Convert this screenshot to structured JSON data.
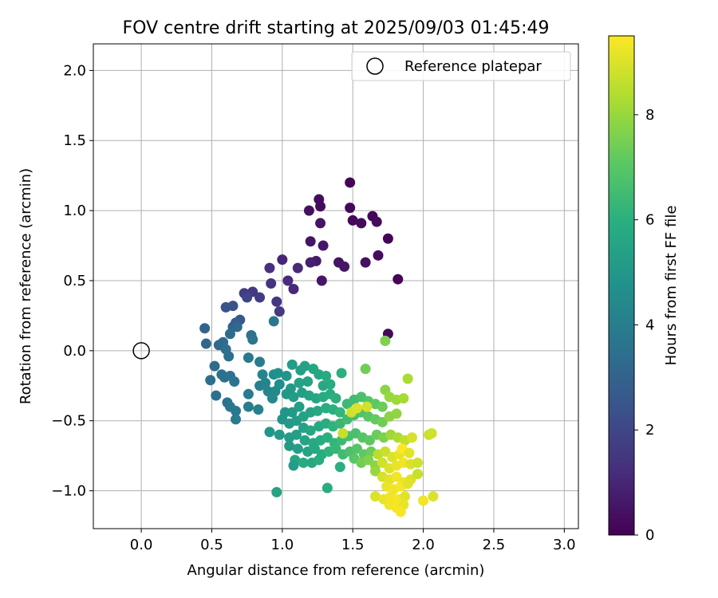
{
  "chart_data": {
    "type": "scatter",
    "title": "FOV centre drift starting at 2025/09/03 01:45:49",
    "xlabel": "Angular distance from reference (arcmin)",
    "ylabel": "Rotation from reference (arcmin)",
    "xlim": [
      -0.34,
      3.1
    ],
    "ylim": [
      -1.27,
      2.19
    ],
    "xticks": [
      0.0,
      0.5,
      1.0,
      1.5,
      2.0,
      2.5,
      3.0
    ],
    "xtick_labels": [
      "0.0",
      "0.5",
      "1.0",
      "1.5",
      "2.0",
      "2.5",
      "3.0"
    ],
    "yticks": [
      -1.0,
      -0.5,
      0.0,
      0.5,
      1.0,
      1.5,
      2.0
    ],
    "ytick_labels": [
      "−1.0",
      "−0.5",
      "0.0",
      "0.5",
      "1.0",
      "1.5",
      "2.0"
    ],
    "grid": true,
    "legend": {
      "position": "top-right",
      "entries": [
        {
          "label": "Reference platepar",
          "marker": "open-circle"
        }
      ]
    },
    "reference_point": {
      "x": 0.0,
      "y": 0.0
    },
    "colorbar": {
      "label": "Hours from first FF file",
      "colormap": "viridis",
      "range": [
        0,
        9.5
      ],
      "ticks": [
        0,
        2,
        4,
        6,
        8
      ],
      "tick_labels": [
        "0",
        "2",
        "4",
        "6",
        "8"
      ]
    },
    "points": [
      {
        "x": 1.48,
        "y": 1.2,
        "t": 0.1
      },
      {
        "x": 1.26,
        "y": 1.08,
        "t": 0.3
      },
      {
        "x": 1.27,
        "y": 1.03,
        "t": 0.3
      },
      {
        "x": 1.48,
        "y": 1.02,
        "t": 0.2
      },
      {
        "x": 1.19,
        "y": 1.0,
        "t": 0.4
      },
      {
        "x": 1.5,
        "y": 0.93,
        "t": 0.2
      },
      {
        "x": 1.64,
        "y": 0.96,
        "t": 0.2
      },
      {
        "x": 1.56,
        "y": 0.91,
        "t": 0.3
      },
      {
        "x": 1.67,
        "y": 0.92,
        "t": 0.3
      },
      {
        "x": 1.27,
        "y": 0.91,
        "t": 0.5
      },
      {
        "x": 1.75,
        "y": 0.8,
        "t": 0.1
      },
      {
        "x": 1.2,
        "y": 0.78,
        "t": 0.5
      },
      {
        "x": 1.29,
        "y": 0.75,
        "t": 0.6
      },
      {
        "x": 1.68,
        "y": 0.68,
        "t": 0.3
      },
      {
        "x": 1.59,
        "y": 0.63,
        "t": 0.4
      },
      {
        "x": 1.24,
        "y": 0.64,
        "t": 0.7
      },
      {
        "x": 1.2,
        "y": 0.63,
        "t": 0.8
      },
      {
        "x": 1.4,
        "y": 0.63,
        "t": 0.5
      },
      {
        "x": 1.44,
        "y": 0.6,
        "t": 0.6
      },
      {
        "x": 1.0,
        "y": 0.65,
        "t": 1.0
      },
      {
        "x": 1.82,
        "y": 0.51,
        "t": 0.1
      },
      {
        "x": 1.28,
        "y": 0.5,
        "t": 0.6
      },
      {
        "x": 1.11,
        "y": 0.59,
        "t": 1.1
      },
      {
        "x": 0.91,
        "y": 0.59,
        "t": 1.3
      },
      {
        "x": 1.04,
        "y": 0.5,
        "t": 1.2
      },
      {
        "x": 1.08,
        "y": 0.44,
        "t": 1.1
      },
      {
        "x": 0.92,
        "y": 0.48,
        "t": 1.4
      },
      {
        "x": 0.79,
        "y": 0.42,
        "t": 1.6
      },
      {
        "x": 0.73,
        "y": 0.41,
        "t": 1.7
      },
      {
        "x": 0.75,
        "y": 0.38,
        "t": 2.0
      },
      {
        "x": 0.84,
        "y": 0.38,
        "t": 1.7
      },
      {
        "x": 0.96,
        "y": 0.35,
        "t": 1.5
      },
      {
        "x": 0.98,
        "y": 0.28,
        "t": 1.6
      },
      {
        "x": 0.65,
        "y": 0.32,
        "t": 2.4
      },
      {
        "x": 0.6,
        "y": 0.31,
        "t": 2.4
      },
      {
        "x": 0.7,
        "y": 0.22,
        "t": 2.6
      },
      {
        "x": 0.67,
        "y": 0.2,
        "t": 2.8
      },
      {
        "x": 0.94,
        "y": 0.21,
        "t": 3.8
      },
      {
        "x": 0.65,
        "y": 0.17,
        "t": 3.0
      },
      {
        "x": 0.68,
        "y": 0.17,
        "t": 3.2
      },
      {
        "x": 0.45,
        "y": 0.16,
        "t": 3.0
      },
      {
        "x": 0.63,
        "y": 0.12,
        "t": 3.3
      },
      {
        "x": 0.78,
        "y": 0.11,
        "t": 3.6
      },
      {
        "x": 0.79,
        "y": 0.08,
        "t": 3.7
      },
      {
        "x": 1.75,
        "y": 0.12,
        "t": 0.2
      },
      {
        "x": 0.46,
        "y": 0.05,
        "t": 3.1
      },
      {
        "x": 0.55,
        "y": 0.04,
        "t": 3.2
      },
      {
        "x": 0.58,
        "y": 0.06,
        "t": 3.3
      },
      {
        "x": 0.6,
        "y": 0.01,
        "t": 3.4
      },
      {
        "x": 0.62,
        "y": -0.04,
        "t": 3.4
      },
      {
        "x": 0.76,
        "y": -0.05,
        "t": 3.8
      },
      {
        "x": 0.84,
        "y": -0.08,
        "t": 4.0
      },
      {
        "x": 0.52,
        "y": -0.11,
        "t": 3.3
      },
      {
        "x": 0.49,
        "y": -0.21,
        "t": 3.4
      },
      {
        "x": 0.57,
        "y": -0.17,
        "t": 3.5
      },
      {
        "x": 0.59,
        "y": -0.19,
        "t": 3.5
      },
      {
        "x": 0.63,
        "y": -0.18,
        "t": 3.6
      },
      {
        "x": 0.66,
        "y": -0.22,
        "t": 3.7
      },
      {
        "x": 0.53,
        "y": -0.32,
        "t": 3.5
      },
      {
        "x": 0.61,
        "y": -0.37,
        "t": 3.6
      },
      {
        "x": 0.63,
        "y": -0.4,
        "t": 3.7
      },
      {
        "x": 0.67,
        "y": -0.43,
        "t": 3.8
      },
      {
        "x": 0.67,
        "y": -0.49,
        "t": 3.9
      },
      {
        "x": 0.76,
        "y": -0.31,
        "t": 3.9
      },
      {
        "x": 0.76,
        "y": -0.4,
        "t": 4.0
      },
      {
        "x": 0.83,
        "y": -0.42,
        "t": 4.1
      },
      {
        "x": 0.84,
        "y": -0.25,
        "t": 4.1
      },
      {
        "x": 0.88,
        "y": -0.23,
        "t": 4.2
      },
      {
        "x": 0.86,
        "y": -0.17,
        "t": 4.3
      },
      {
        "x": 0.9,
        "y": -0.29,
        "t": 4.3
      },
      {
        "x": 0.93,
        "y": -0.34,
        "t": 4.4
      },
      {
        "x": 0.95,
        "y": -0.29,
        "t": 4.5
      },
      {
        "x": 0.98,
        "y": -0.24,
        "t": 4.6
      },
      {
        "x": 0.94,
        "y": -0.17,
        "t": 4.6
      },
      {
        "x": 0.97,
        "y": -0.16,
        "t": 4.8
      },
      {
        "x": 1.03,
        "y": -0.18,
        "t": 4.9
      },
      {
        "x": 1.07,
        "y": -0.1,
        "t": 5.2
      },
      {
        "x": 1.13,
        "y": -0.14,
        "t": 5.3
      },
      {
        "x": 1.16,
        "y": -0.11,
        "t": 5.4
      },
      {
        "x": 1.22,
        "y": -0.13,
        "t": 5.6
      },
      {
        "x": 1.26,
        "y": -0.17,
        "t": 5.6
      },
      {
        "x": 1.31,
        "y": -0.18,
        "t": 5.8
      },
      {
        "x": 1.42,
        "y": -0.16,
        "t": 6.0
      },
      {
        "x": 1.34,
        "y": -0.24,
        "t": 5.9
      },
      {
        "x": 1.29,
        "y": -0.25,
        "t": 5.7
      },
      {
        "x": 1.18,
        "y": -0.22,
        "t": 5.5
      },
      {
        "x": 1.12,
        "y": -0.23,
        "t": 5.4
      },
      {
        "x": 1.06,
        "y": -0.27,
        "t": 5.1
      },
      {
        "x": 1.03,
        "y": -0.31,
        "t": 5.0
      },
      {
        "x": 1.08,
        "y": -0.33,
        "t": 5.2
      },
      {
        "x": 1.14,
        "y": -0.3,
        "t": 5.3
      },
      {
        "x": 1.19,
        "y": -0.32,
        "t": 5.5
      },
      {
        "x": 1.24,
        "y": -0.34,
        "t": 5.6
      },
      {
        "x": 1.29,
        "y": -0.33,
        "t": 5.8
      },
      {
        "x": 1.34,
        "y": -0.31,
        "t": 5.9
      },
      {
        "x": 1.38,
        "y": -0.34,
        "t": 6.0
      },
      {
        "x": 1.12,
        "y": -0.4,
        "t": 5.3
      },
      {
        "x": 1.07,
        "y": -0.44,
        "t": 5.1
      },
      {
        "x": 1.02,
        "y": -0.44,
        "t": 5.0
      },
      {
        "x": 1.0,
        "y": -0.49,
        "t": 4.9
      },
      {
        "x": 1.05,
        "y": -0.52,
        "t": 5.1
      },
      {
        "x": 1.1,
        "y": -0.5,
        "t": 5.2
      },
      {
        "x": 1.15,
        "y": -0.47,
        "t": 5.4
      },
      {
        "x": 1.2,
        "y": -0.44,
        "t": 5.5
      },
      {
        "x": 1.25,
        "y": -0.43,
        "t": 5.7
      },
      {
        "x": 1.31,
        "y": -0.41,
        "t": 5.9
      },
      {
        "x": 1.36,
        "y": -0.42,
        "t": 6.0
      },
      {
        "x": 1.41,
        "y": -0.44,
        "t": 6.2
      },
      {
        "x": 1.46,
        "y": -0.38,
        "t": 6.4
      },
      {
        "x": 1.51,
        "y": -0.35,
        "t": 6.5
      },
      {
        "x": 1.56,
        "y": -0.33,
        "t": 6.7
      },
      {
        "x": 1.61,
        "y": -0.36,
        "t": 6.9
      },
      {
        "x": 1.66,
        "y": -0.38,
        "t": 7.1
      },
      {
        "x": 1.71,
        "y": -0.4,
        "t": 7.3
      },
      {
        "x": 1.73,
        "y": -0.28,
        "t": 7.8
      },
      {
        "x": 1.76,
        "y": -0.33,
        "t": 8.0
      },
      {
        "x": 1.81,
        "y": -0.35,
        "t": 8.1
      },
      {
        "x": 1.86,
        "y": -0.34,
        "t": 8.2
      },
      {
        "x": 1.89,
        "y": -0.2,
        "t": 8.3
      },
      {
        "x": 1.73,
        "y": 0.07,
        "t": 7.6
      },
      {
        "x": 1.59,
        "y": -0.13,
        "t": 7.4
      },
      {
        "x": 1.15,
        "y": -0.55,
        "t": 5.4
      },
      {
        "x": 1.2,
        "y": -0.57,
        "t": 5.6
      },
      {
        "x": 1.26,
        "y": -0.54,
        "t": 5.7
      },
      {
        "x": 1.31,
        "y": -0.52,
        "t": 5.9
      },
      {
        "x": 1.36,
        "y": -0.54,
        "t": 6.1
      },
      {
        "x": 1.41,
        "y": -0.52,
        "t": 6.3
      },
      {
        "x": 1.46,
        "y": -0.49,
        "t": 6.5
      },
      {
        "x": 1.51,
        "y": -0.46,
        "t": 6.6
      },
      {
        "x": 1.56,
        "y": -0.44,
        "t": 6.8
      },
      {
        "x": 1.61,
        "y": -0.47,
        "t": 7.0
      },
      {
        "x": 1.66,
        "y": -0.49,
        "t": 7.2
      },
      {
        "x": 1.71,
        "y": -0.51,
        "t": 7.4
      },
      {
        "x": 1.76,
        "y": -0.47,
        "t": 7.8
      },
      {
        "x": 1.81,
        "y": -0.45,
        "t": 7.9
      },
      {
        "x": 1.49,
        "y": -0.44,
        "t": 8.8
      },
      {
        "x": 1.53,
        "y": -0.41,
        "t": 9.0
      },
      {
        "x": 1.6,
        "y": -0.4,
        "t": 8.9
      },
      {
        "x": 0.91,
        "y": -0.58,
        "t": 5.0
      },
      {
        "x": 0.98,
        "y": -0.6,
        "t": 5.1
      },
      {
        "x": 1.05,
        "y": -0.62,
        "t": 5.2
      },
      {
        "x": 1.1,
        "y": -0.6,
        "t": 5.3
      },
      {
        "x": 1.16,
        "y": -0.64,
        "t": 5.5
      },
      {
        "x": 1.22,
        "y": -0.66,
        "t": 5.7
      },
      {
        "x": 1.27,
        "y": -0.64,
        "t": 5.8
      },
      {
        "x": 1.32,
        "y": -0.62,
        "t": 6.0
      },
      {
        "x": 1.37,
        "y": -0.66,
        "t": 6.2
      },
      {
        "x": 1.42,
        "y": -0.64,
        "t": 6.4
      },
      {
        "x": 1.47,
        "y": -0.61,
        "t": 6.6
      },
      {
        "x": 1.52,
        "y": -0.59,
        "t": 6.7
      },
      {
        "x": 1.57,
        "y": -0.62,
        "t": 6.9
      },
      {
        "x": 1.62,
        "y": -0.64,
        "t": 7.1
      },
      {
        "x": 1.67,
        "y": -0.6,
        "t": 7.3
      },
      {
        "x": 1.72,
        "y": -0.62,
        "t": 7.6
      },
      {
        "x": 1.77,
        "y": -0.6,
        "t": 8.1
      },
      {
        "x": 1.82,
        "y": -0.62,
        "t": 8.3
      },
      {
        "x": 1.87,
        "y": -0.64,
        "t": 8.6
      },
      {
        "x": 1.92,
        "y": -0.62,
        "t": 8.9
      },
      {
        "x": 2.04,
        "y": -0.6,
        "t": 8.7
      },
      {
        "x": 2.06,
        "y": -0.59,
        "t": 8.8
      },
      {
        "x": 1.43,
        "y": -0.59,
        "t": 8.7
      },
      {
        "x": 1.05,
        "y": -0.68,
        "t": 5.1
      },
      {
        "x": 1.11,
        "y": -0.7,
        "t": 5.3
      },
      {
        "x": 1.18,
        "y": -0.72,
        "t": 5.5
      },
      {
        "x": 1.23,
        "y": -0.7,
        "t": 5.7
      },
      {
        "x": 1.28,
        "y": -0.74,
        "t": 5.9
      },
      {
        "x": 1.33,
        "y": -0.72,
        "t": 6.1
      },
      {
        "x": 1.38,
        "y": -0.7,
        "t": 6.3
      },
      {
        "x": 1.43,
        "y": -0.74,
        "t": 6.5
      },
      {
        "x": 1.48,
        "y": -0.72,
        "t": 6.7
      },
      {
        "x": 1.53,
        "y": -0.7,
        "t": 6.9
      },
      {
        "x": 1.58,
        "y": -0.74,
        "t": 7.1
      },
      {
        "x": 1.63,
        "y": -0.72,
        "t": 7.3
      },
      {
        "x": 1.68,
        "y": -0.74,
        "t": 8.5
      },
      {
        "x": 1.73,
        "y": -0.72,
        "t": 8.7
      },
      {
        "x": 1.78,
        "y": -0.76,
        "t": 9.0
      },
      {
        "x": 1.83,
        "y": -0.74,
        "t": 9.2
      },
      {
        "x": 1.85,
        "y": -0.7,
        "t": 9.5
      },
      {
        "x": 1.9,
        "y": -0.73,
        "t": 9.1
      },
      {
        "x": 1.09,
        "y": -0.78,
        "t": 5.6
      },
      {
        "x": 1.15,
        "y": -0.8,
        "t": 5.8
      },
      {
        "x": 1.08,
        "y": -0.82,
        "t": 5.2
      },
      {
        "x": 1.21,
        "y": -0.8,
        "t": 5.7
      },
      {
        "x": 1.26,
        "y": -0.78,
        "t": 5.9
      },
      {
        "x": 1.41,
        "y": -0.83,
        "t": 6.0
      },
      {
        "x": 1.51,
        "y": -0.77,
        "t": 7.0
      },
      {
        "x": 1.56,
        "y": -0.8,
        "t": 7.4
      },
      {
        "x": 1.61,
        "y": -0.78,
        "t": 7.6
      },
      {
        "x": 1.66,
        "y": -0.82,
        "t": 7.8
      },
      {
        "x": 1.71,
        "y": -0.8,
        "t": 8.8
      },
      {
        "x": 1.76,
        "y": -0.84,
        "t": 9.0
      },
      {
        "x": 1.81,
        "y": -0.82,
        "t": 9.2
      },
      {
        "x": 1.86,
        "y": -0.8,
        "t": 9.3
      },
      {
        "x": 1.91,
        "y": -0.81,
        "t": 9.0
      },
      {
        "x": 1.96,
        "y": -0.8,
        "t": 8.8
      },
      {
        "x": 1.66,
        "y": -0.86,
        "t": 8.0
      },
      {
        "x": 1.71,
        "y": -0.9,
        "t": 8.9
      },
      {
        "x": 1.76,
        "y": -0.92,
        "t": 9.1
      },
      {
        "x": 1.81,
        "y": -0.9,
        "t": 9.3
      },
      {
        "x": 1.86,
        "y": -0.94,
        "t": 9.2
      },
      {
        "x": 1.91,
        "y": -0.92,
        "t": 9.0
      },
      {
        "x": 1.96,
        "y": -0.88,
        "t": 8.7
      },
      {
        "x": 1.74,
        "y": -0.97,
        "t": 9.2
      },
      {
        "x": 1.79,
        "y": -0.99,
        "t": 9.3
      },
      {
        "x": 1.84,
        "y": -0.97,
        "t": 9.4
      },
      {
        "x": 1.89,
        "y": -0.95,
        "t": 9.1
      },
      {
        "x": 1.66,
        "y": -1.04,
        "t": 9.0
      },
      {
        "x": 1.72,
        "y": -1.06,
        "t": 9.2
      },
      {
        "x": 1.77,
        "y": -1.04,
        "t": 9.3
      },
      {
        "x": 1.82,
        "y": -1.06,
        "t": 9.4
      },
      {
        "x": 1.87,
        "y": -1.04,
        "t": 9.1
      },
      {
        "x": 1.76,
        "y": -1.1,
        "t": 9.3
      },
      {
        "x": 1.81,
        "y": -1.12,
        "t": 9.4
      },
      {
        "x": 1.86,
        "y": -1.1,
        "t": 9.2
      },
      {
        "x": 1.84,
        "y": -1.15,
        "t": 9.4
      },
      {
        "x": 2.0,
        "y": -1.07,
        "t": 9.3
      },
      {
        "x": 2.07,
        "y": -1.04,
        "t": 9.0
      },
      {
        "x": 1.32,
        "y": -0.98,
        "t": 5.9
      },
      {
        "x": 0.96,
        "y": -1.01,
        "t": 5.5
      }
    ]
  }
}
